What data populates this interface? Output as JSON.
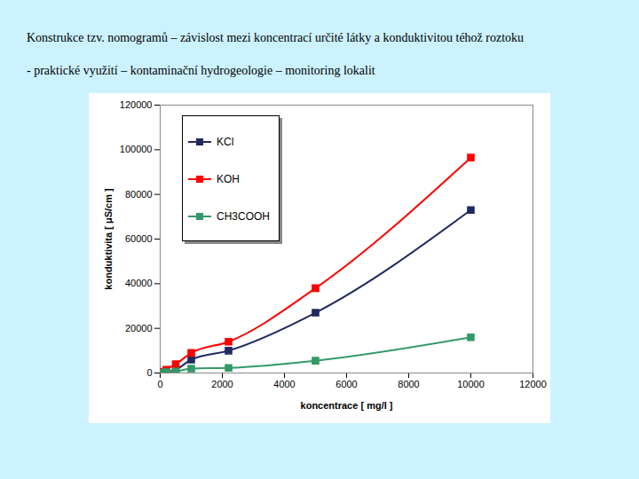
{
  "chart_data": {
    "type": "line",
    "title": "Konstrukce tzv. nomogramů – závislost mezi koncentrací určité látky a konduktivitou téhož roztoku",
    "subtitle": "- praktické využití – kontaminační hydrogeologie – monitoring lokalit",
    "x_label": "koncentrace [ mg/l ]",
    "y_label": "konduktivita [ μS/cm ]",
    "x": [
      100,
      200,
      500,
      1000,
      2200,
      5000,
      10000
    ],
    "series": [
      {
        "name": "KCl",
        "color": "#1f2a60",
        "values": [
          200,
          400,
          1500,
          6000,
          10000,
          27000,
          73000
        ]
      },
      {
        "name": "KOH",
        "color": "#ff0000",
        "values": [
          500,
          1500,
          4000,
          9000,
          14000,
          38000,
          96500
        ]
      },
      {
        "name": "CH3COOH",
        "color": "#339966",
        "values": [
          200,
          400,
          700,
          2000,
          2300,
          5500,
          16000
        ]
      }
    ],
    "xlim": [
      0,
      12000
    ],
    "xticks": [
      0,
      2000,
      4000,
      6000,
      8000,
      10000,
      12000
    ],
    "ylim": [
      0,
      120000
    ],
    "yticks": [
      0,
      20000,
      40000,
      60000,
      80000,
      100000,
      120000
    ],
    "grid": false,
    "legend": "top-left",
    "marker": "square",
    "line_style": "smooth"
  }
}
